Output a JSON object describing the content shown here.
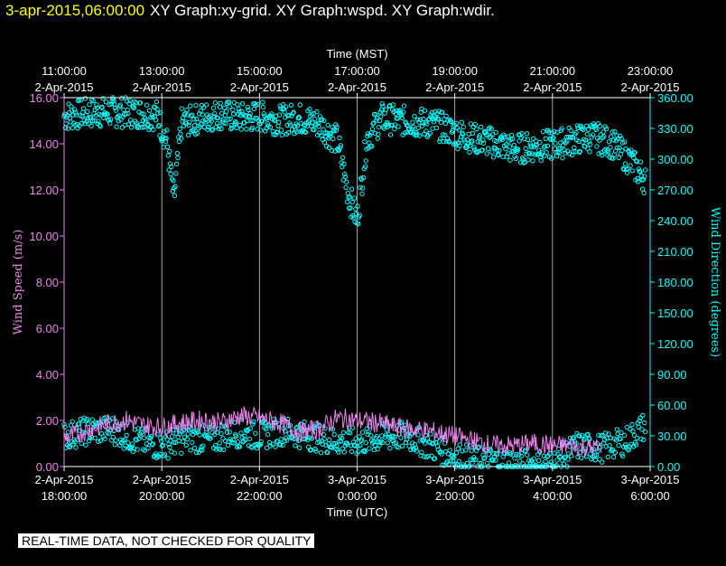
{
  "header": {
    "timestamp": "3-apr-2015,06:00:00",
    "graphs": "XY Graph:xy-grid.  XY Graph:wspd.  XY Graph:wdir."
  },
  "notice": "REAL-TIME DATA, NOT CHECKED FOR QUALITY",
  "colors": {
    "background": "#000000",
    "axes": "#ffffff",
    "grid": "#ffffff",
    "wind_speed": "#ee82ee",
    "wind_direction": "#00ffff"
  },
  "chart_data": {
    "type": "scatter",
    "x_top_label": "Time (MST)",
    "x_bottom_label": "Time (UTC)",
    "y_left_label": "Wind Speed (m/s)",
    "y_right_label": "Wind Direction (degrees)",
    "x_range_utc_hours": [
      18,
      30
    ],
    "y_left_range": [
      0,
      16
    ],
    "y_right_range": [
      0,
      360
    ],
    "grid": "vertical",
    "top_ticks": [
      {
        "time": "11:00:00",
        "date": "2-Apr-2015"
      },
      {
        "time": "13:00:00",
        "date": "2-Apr-2015"
      },
      {
        "time": "15:00:00",
        "date": "2-Apr-2015"
      },
      {
        "time": "17:00:00",
        "date": "2-Apr-2015"
      },
      {
        "time": "19:00:00",
        "date": "2-Apr-2015"
      },
      {
        "time": "21:00:00",
        "date": "2-Apr-2015"
      },
      {
        "time": "23:00:00",
        "date": "2-Apr-2015"
      }
    ],
    "bottom_ticks": [
      {
        "date": "2-Apr-2015",
        "time": "18:00:00"
      },
      {
        "date": "2-Apr-2015",
        "time": "20:00:00"
      },
      {
        "date": "2-Apr-2015",
        "time": "22:00:00"
      },
      {
        "date": "3-Apr-2015",
        "time": "0:00:00"
      },
      {
        "date": "3-Apr-2015",
        "time": "2:00:00"
      },
      {
        "date": "3-Apr-2015",
        "time": "4:00:00"
      },
      {
        "date": "3-Apr-2015",
        "time": "6:00:00"
      }
    ],
    "left_ticks": [
      "0.00",
      "2.00",
      "4.00",
      "6.00",
      "8.00",
      "10.00",
      "12.00",
      "14.00",
      "16.00"
    ],
    "right_ticks": [
      "0.00",
      "30.00",
      "60.00",
      "90.00",
      "120.00",
      "150.00",
      "180.00",
      "210.00",
      "240.00",
      "270.00",
      "300.00",
      "330.00",
      "360.00"
    ],
    "series": [
      {
        "name": "wspd",
        "axis": "left",
        "marker": "line",
        "x": [
          18.0,
          18.5,
          19.0,
          19.3,
          19.6,
          20.0,
          20.4,
          20.8,
          21.2,
          21.6,
          22.0,
          22.4,
          22.8,
          23.2,
          23.6,
          24.0,
          24.4,
          24.8,
          25.2,
          25.6,
          26.0,
          26.4,
          26.8,
          27.2,
          27.6,
          28.0,
          28.4,
          28.8,
          29.0
        ],
        "y": [
          1.2,
          1.6,
          1.9,
          2.0,
          1.8,
          1.7,
          1.9,
          2.0,
          1.9,
          2.2,
          2.1,
          1.9,
          1.5,
          1.6,
          2.1,
          2.0,
          1.9,
          1.7,
          1.6,
          1.5,
          1.3,
          1.1,
          0.9,
          0.9,
          1.0,
          0.9,
          0.9,
          0.8,
          0.8
        ]
      },
      {
        "name": "wdir",
        "axis": "right",
        "marker": "circle",
        "upper_band": {
          "x": [
            18.0,
            18.5,
            19.0,
            19.5,
            19.9,
            20.1,
            20.25,
            20.4,
            20.8,
            21.2,
            21.6,
            22.0,
            22.4,
            22.8,
            23.2,
            23.6,
            23.8,
            24.0,
            24.2,
            24.5,
            24.8,
            25.2,
            25.6,
            26.0,
            26.4,
            26.8,
            27.2,
            27.6,
            28.0,
            28.4,
            28.8,
            29.2,
            29.6,
            29.9
          ],
          "y": [
            342,
            345,
            346,
            345,
            343,
            318,
            260,
            335,
            340,
            344,
            340,
            342,
            338,
            340,
            335,
            318,
            270,
            240,
            320,
            340,
            338,
            336,
            334,
            326,
            320,
            316,
            310,
            312,
            314,
            318,
            322,
            316,
            298,
            280
          ]
        },
        "lower_band": {
          "x": [
            18.0,
            18.5,
            19.0,
            19.5,
            20.0,
            20.5,
            21.0,
            21.5,
            22.0,
            22.5,
            23.0,
            23.5,
            24.0,
            24.5,
            25.0,
            25.5,
            26.0,
            26.5,
            27.0,
            27.5,
            28.0,
            28.5,
            29.0,
            29.5,
            29.9
          ],
          "y": [
            30,
            35,
            36,
            25,
            20,
            28,
            26,
            33,
            30,
            35,
            30,
            25,
            24,
            28,
            30,
            20,
            10,
            6,
            5,
            3,
            2,
            20,
            18,
            25,
            40
          ]
        }
      }
    ]
  }
}
